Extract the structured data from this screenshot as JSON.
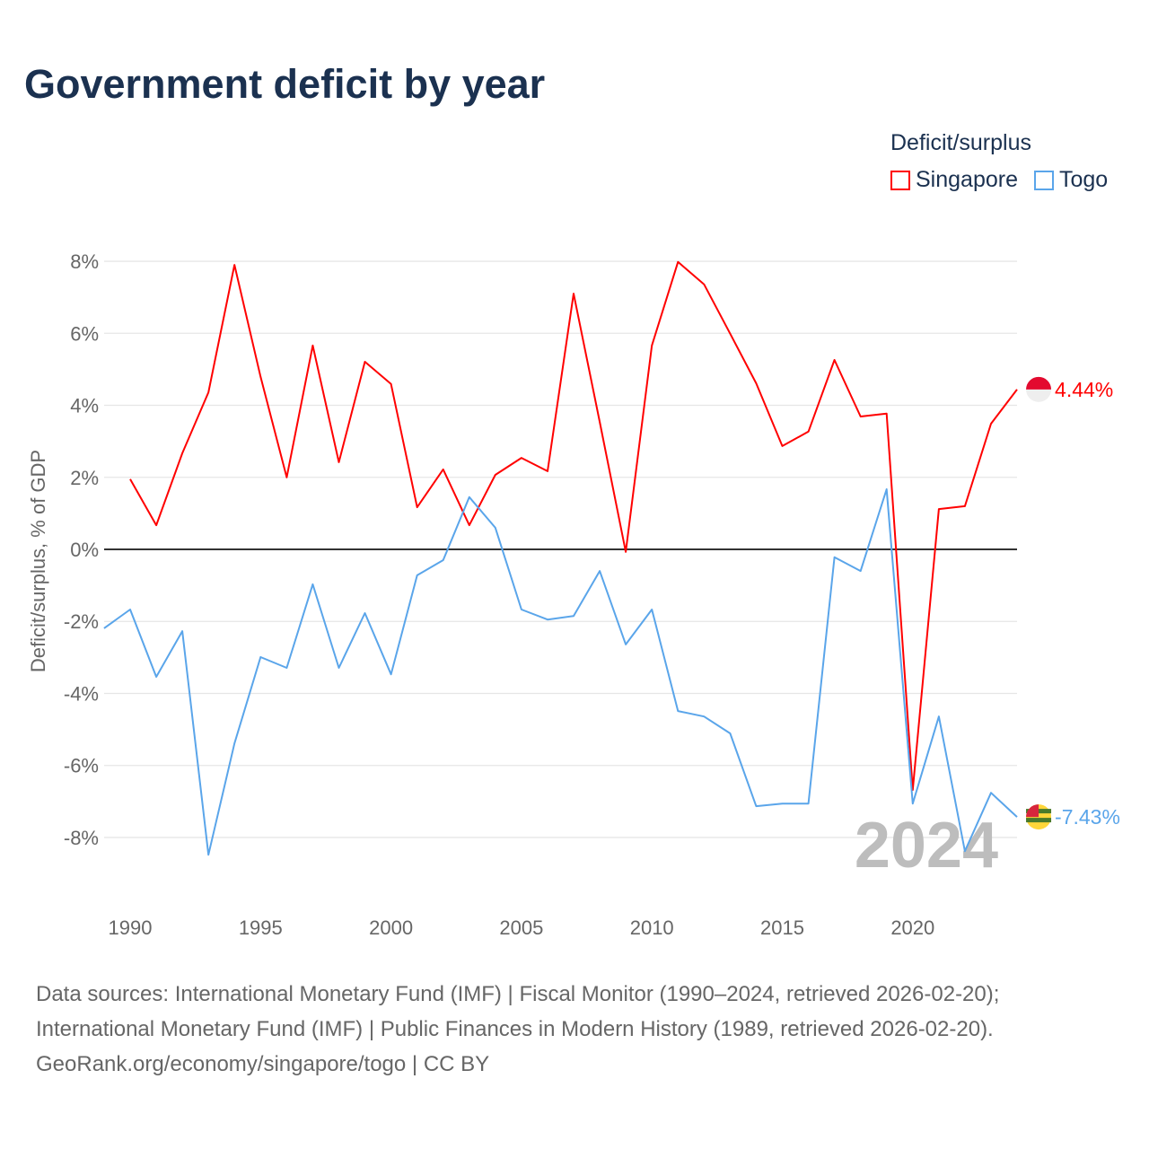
{
  "title": "Government deficit by year",
  "legend": {
    "title": "Deficit/surplus",
    "items": [
      {
        "label": "Singapore",
        "color": "#ff0000"
      },
      {
        "label": "Togo",
        "color": "#5aa5ea"
      }
    ]
  },
  "chart_data": {
    "type": "line",
    "title": "Government deficit by year",
    "xlabel": "",
    "ylabel": "Deficit/surplus, % of GDP",
    "xlim": [
      1989,
      2024
    ],
    "ylim": [
      -9.5,
      8.5
    ],
    "x_ticks": [
      "1990",
      "1995",
      "2000",
      "2005",
      "2010",
      "2015",
      "2020"
    ],
    "y_ticks": [
      "8%",
      "6%",
      "4%",
      "2%",
      "0%",
      "-2%",
      "-4%",
      "-6%",
      "-8%"
    ],
    "y_tick_values": [
      8,
      6,
      4,
      2,
      0,
      -2,
      -4,
      -6,
      -8
    ],
    "grid": true,
    "legend_position": "top-right",
    "watermark_year": "2024",
    "series": [
      {
        "name": "Singapore",
        "color": "#ff0000",
        "end_label": "4.44%",
        "x": [
          1990,
          1991,
          1992,
          1993,
          1994,
          1995,
          1996,
          1997,
          1998,
          1999,
          2000,
          2001,
          2002,
          2003,
          2004,
          2005,
          2006,
          2007,
          2008,
          2009,
          2010,
          2011,
          2012,
          2013,
          2014,
          2015,
          2016,
          2017,
          2018,
          2019,
          2020,
          2021,
          2022,
          2023,
          2024
        ],
        "values": [
          1.95,
          0.67,
          2.67,
          4.36,
          7.9,
          4.79,
          2.0,
          5.66,
          2.42,
          5.21,
          4.59,
          1.17,
          2.22,
          0.67,
          2.07,
          2.54,
          2.17,
          7.1,
          3.54,
          -0.07,
          5.66,
          7.98,
          7.36,
          5.99,
          4.61,
          2.87,
          3.27,
          5.26,
          3.69,
          3.77,
          -6.68,
          1.12,
          1.2,
          3.49,
          4.44
        ]
      },
      {
        "name": "Togo",
        "color": "#5aa5ea",
        "end_label": "-7.43%",
        "x": [
          1989,
          1990,
          1991,
          1992,
          1993,
          1994,
          1995,
          1996,
          1997,
          1998,
          1999,
          2000,
          2001,
          2002,
          2003,
          2004,
          2005,
          2006,
          2007,
          2008,
          2009,
          2010,
          2011,
          2012,
          2013,
          2014,
          2015,
          2016,
          2017,
          2018,
          2019,
          2020,
          2021,
          2022,
          2023,
          2024
        ],
        "values": [
          -2.19,
          -1.67,
          -3.54,
          -2.27,
          -8.48,
          -5.39,
          -2.99,
          -3.29,
          -0.97,
          -3.29,
          -1.77,
          -3.47,
          -0.72,
          -0.3,
          1.45,
          0.6,
          -1.67,
          -1.95,
          -1.85,
          -0.6,
          -2.64,
          -1.67,
          -4.49,
          -4.64,
          -5.11,
          -7.13,
          -7.06,
          -7.06,
          -0.22,
          -0.6,
          1.67,
          -7.06,
          -4.64,
          -8.38,
          -6.76,
          -7.43
        ]
      }
    ]
  },
  "footer": {
    "line1": "Data sources: International Monetary Fund (IMF) | Fiscal Monitor (1990–2024, retrieved 2026-02-20);",
    "line2": "International Monetary Fund (IMF) | Public Finances in Modern History (1989, retrieved 2026-02-20).",
    "line3": "GeoRank.org/economy/singapore/togo | CC BY"
  }
}
